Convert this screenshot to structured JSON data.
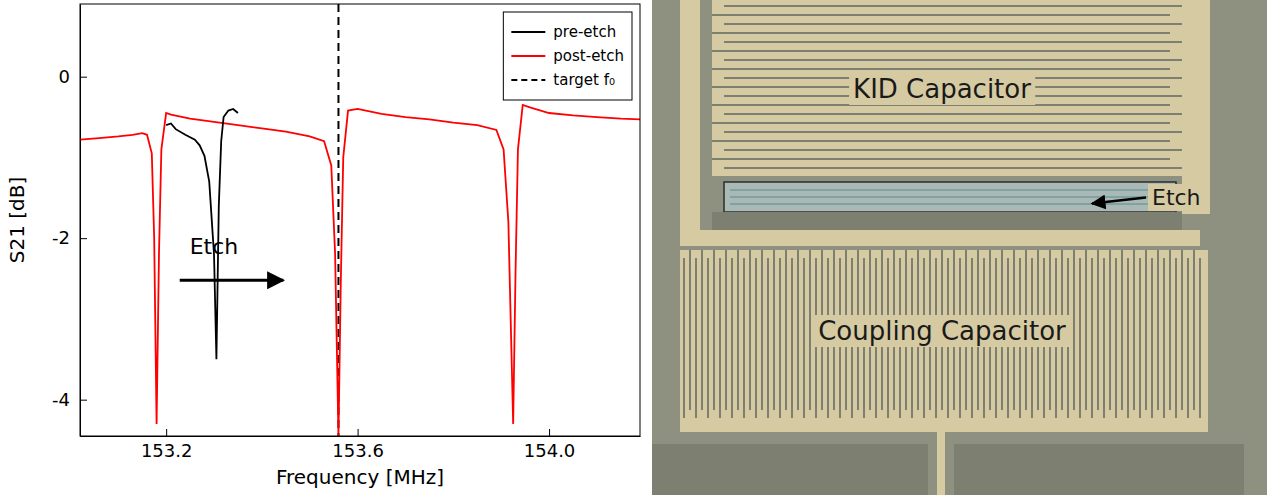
{
  "chart_data": {
    "type": "line",
    "xlabel": "Frequency [MHz]",
    "ylabel": "S21 [dB]",
    "xlim": [
      153.02,
      154.19
    ],
    "ylim": [
      -4.45,
      0.9
    ],
    "xticks": [
      {
        "value": 153.2,
        "label": "153.2"
      },
      {
        "value": 153.6,
        "label": "153.6"
      },
      {
        "value": 154.0,
        "label": "154.0"
      }
    ],
    "yticks": [
      0,
      -2,
      -4
    ],
    "grid": false,
    "legend": "upper right",
    "series": [
      {
        "name": "pre-etch",
        "color": "#000000",
        "line_style": "solid",
        "x": [
          153.2,
          153.21,
          153.22,
          153.24,
          153.26,
          153.27,
          153.28,
          153.29,
          153.3,
          153.305,
          153.31,
          153.315,
          153.32,
          153.33,
          153.34,
          153.35
        ],
        "values": [
          -0.6,
          -0.58,
          -0.65,
          -0.72,
          -0.78,
          -0.85,
          -0.98,
          -1.3,
          -2.2,
          -3.5,
          -1.6,
          -0.8,
          -0.5,
          -0.42,
          -0.4,
          -0.45
        ]
      },
      {
        "name": "post-etch",
        "color": "#ff0000",
        "line_style": "solid",
        "x": [
          153.02,
          153.06,
          153.1,
          153.13,
          153.15,
          153.16,
          153.17,
          153.175,
          153.18,
          153.185,
          153.19,
          153.2,
          153.21,
          153.25,
          153.3,
          153.35,
          153.4,
          153.45,
          153.5,
          153.53,
          153.545,
          153.553,
          153.56,
          153.565,
          153.57,
          153.58,
          153.6,
          153.65,
          153.7,
          153.75,
          153.8,
          153.85,
          153.89,
          153.905,
          153.915,
          153.925,
          153.93,
          153.935,
          153.945,
          153.96,
          154.0,
          154.05,
          154.1,
          154.15,
          154.19
        ],
        "values": [
          -0.78,
          -0.76,
          -0.74,
          -0.72,
          -0.7,
          -0.72,
          -0.95,
          -2.0,
          -4.3,
          -2.2,
          -0.9,
          -0.45,
          -0.47,
          -0.52,
          -0.56,
          -0.6,
          -0.64,
          -0.68,
          -0.74,
          -0.8,
          -1.1,
          -2.2,
          -4.45,
          -2.5,
          -1.0,
          -0.42,
          -0.4,
          -0.46,
          -0.5,
          -0.53,
          -0.57,
          -0.6,
          -0.66,
          -0.9,
          -1.8,
          -4.3,
          -2.4,
          -0.9,
          -0.35,
          -0.38,
          -0.45,
          -0.48,
          -0.5,
          -0.52,
          -0.53
        ]
      },
      {
        "name": "target f₀",
        "color": "#000000",
        "type": "vline",
        "line_style": "dashed",
        "x": 153.56
      }
    ],
    "annotations": [
      {
        "text": "Etch",
        "x": 153.3,
        "y": -2.2
      }
    ]
  },
  "photo": {
    "labels": [
      "KID Capacitor",
      "Etch",
      "Coupling Capacitor"
    ]
  }
}
